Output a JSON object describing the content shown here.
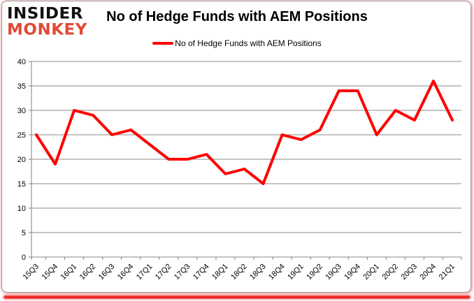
{
  "logo": {
    "line1": "INSIDER",
    "line2": "MONKEY"
  },
  "header": {
    "title": "No of Hedge Funds with AEM Positions"
  },
  "legend": {
    "label": "No of Hedge Funds with AEM Positions",
    "swatch_color": "#FF0000"
  },
  "colors": {
    "line": "#FF0000",
    "grid": "#898989",
    "axis": "#7f7f7f",
    "tick_text": "#000000",
    "logo_accent": "#E04A35",
    "frame_glow": "#EC1212"
  },
  "chart_data": {
    "type": "line",
    "title": "No of Hedge Funds with AEM Positions",
    "xlabel": "",
    "ylabel": "",
    "ylim": [
      0,
      40
    ],
    "ytick_step": 5,
    "grid": "horizontal",
    "legend_position": "top",
    "categories": [
      "15Q3",
      "15Q4",
      "16Q1",
      "16Q2",
      "16Q3",
      "16Q4",
      "17Q1",
      "17Q2",
      "17Q3",
      "17Q4",
      "18Q1",
      "18Q2",
      "18Q3",
      "18Q4",
      "19Q1",
      "19Q2",
      "19Q3",
      "19Q4",
      "20Q1",
      "20Q2",
      "20Q3",
      "20Q4",
      "21Q1"
    ],
    "series": [
      {
        "name": "No of Hedge Funds with AEM Positions",
        "color": "#FF0000",
        "values": [
          25,
          19,
          30,
          29,
          25,
          26,
          23,
          20,
          20,
          21,
          17,
          18,
          15,
          25,
          24,
          26,
          34,
          34,
          25,
          30,
          28,
          36,
          28
        ]
      }
    ]
  }
}
